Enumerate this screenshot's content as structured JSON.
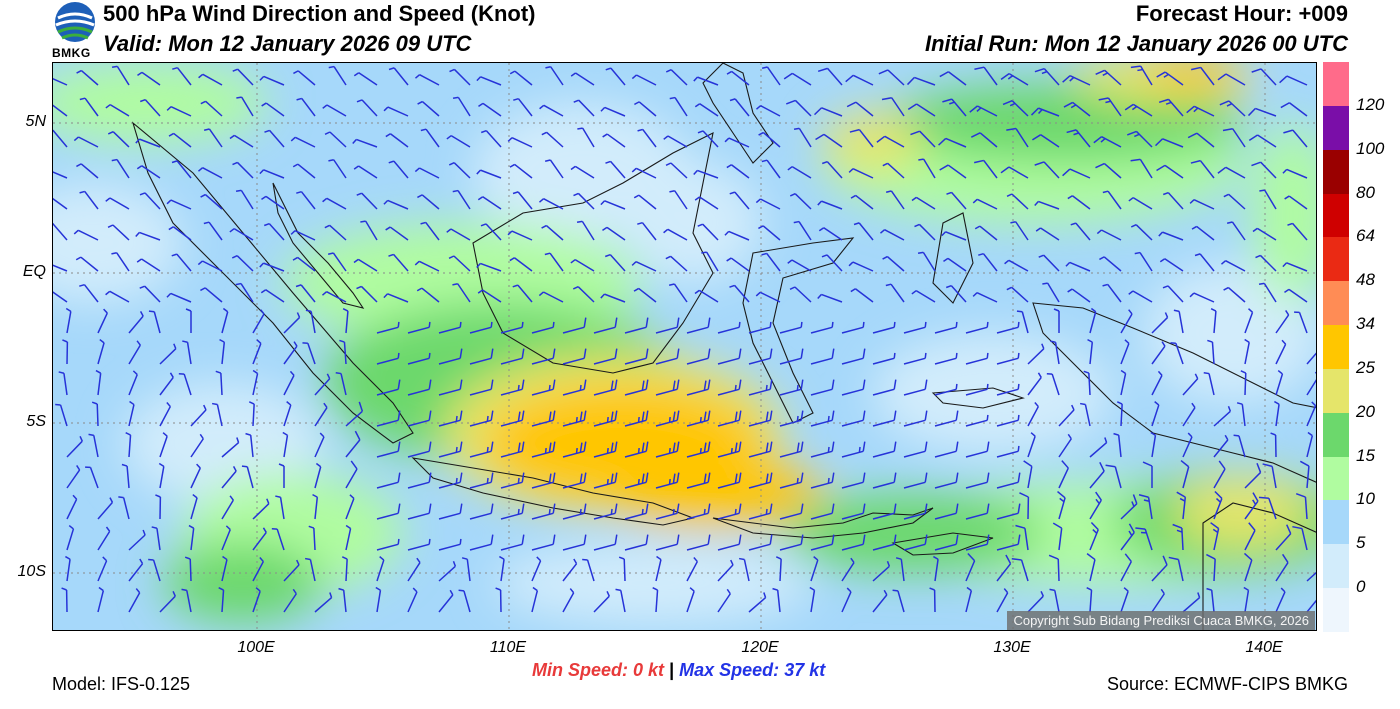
{
  "header": {
    "title": "500 hPa Wind Direction and Speed (Knot)",
    "valid": "Valid: Mon 12 January 2026 09 UTC",
    "forecast_hour": "Forecast Hour: +009",
    "initial_run": "Initial Run: Mon 12 January 2026 00 UTC"
  },
  "logo": {
    "text": "BMKG",
    "icon": "bmkg-logo-icon"
  },
  "map": {
    "lat_ticks": [
      "5N",
      "EQ",
      "5S",
      "10S"
    ],
    "lon_ticks": [
      "100E",
      "110E",
      "120E",
      "130E",
      "140E"
    ],
    "copyright": "Copyright Sub Bidang Prediksi Cuaca BMKG, 2026"
  },
  "colorbar": {
    "labels": [
      "120",
      "100",
      "80",
      "64",
      "48",
      "34",
      "25",
      "20",
      "15",
      "10",
      "5",
      "0"
    ],
    "colors": [
      "#ff6b8a",
      "#7a0ea8",
      "#9a0000",
      "#cf0000",
      "#ea2a14",
      "#ff8c55",
      "#ffc600",
      "#e5e56a",
      "#6cd86c",
      "#b0fca0",
      "#a6d8fa",
      "#d2ecfb",
      "#eef6fd"
    ]
  },
  "footer": {
    "model": "Model: IFS-0.125",
    "source": "Source: ECMWF-CIPS BMKG",
    "min_label": "Min Speed:",
    "min_value": "0 kt",
    "separator": "|",
    "max_label": "Max Speed:",
    "max_value": "37 kt"
  }
}
